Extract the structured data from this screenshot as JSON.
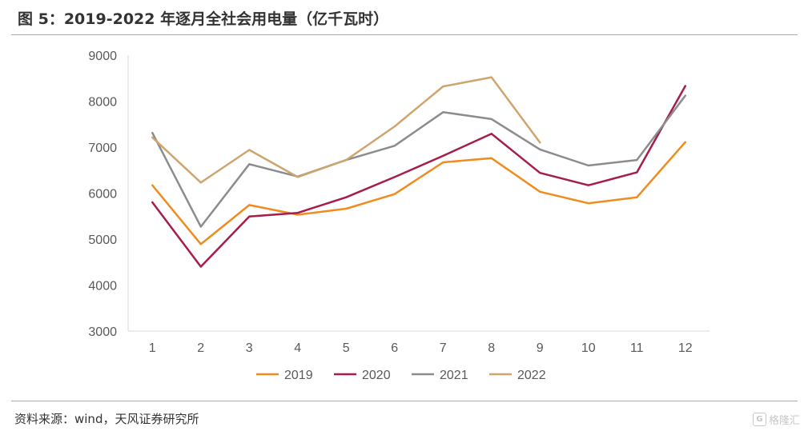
{
  "header": {
    "title": "图 5：2019-2022 年逐月全社会用电量（亿千瓦时）"
  },
  "footer": {
    "source": "资料来源：wind，天风证券研究所",
    "brand": "格隆汇",
    "brand_mark": "G"
  },
  "chart_data": {
    "type": "line",
    "categories": [
      "1",
      "2",
      "3",
      "4",
      "5",
      "6",
      "7",
      "8",
      "9",
      "10",
      "11",
      "12"
    ],
    "ylim": [
      3000,
      9000
    ],
    "yticks": [
      "3000",
      "4000",
      "5000",
      "6000",
      "7000",
      "8000",
      "9000"
    ],
    "grid": false,
    "legend_position": "bottom",
    "series": [
      {
        "name": "2019",
        "color": "#f08c1e",
        "values": [
          6170,
          4890,
          5740,
          5530,
          5660,
          5980,
          6670,
          6760,
          6030,
          5780,
          5910,
          7110
        ]
      },
      {
        "name": "2020",
        "color": "#a51d48",
        "values": [
          5800,
          4400,
          5490,
          5570,
          5910,
          6350,
          6810,
          7290,
          6440,
          6170,
          6450,
          8330
        ]
      },
      {
        "name": "2021",
        "color": "#8c8c8c",
        "values": [
          7310,
          5270,
          6630,
          6360,
          6720,
          7030,
          7760,
          7610,
          6950,
          6600,
          6720,
          8120
        ]
      },
      {
        "name": "2022",
        "color": "#cda56e",
        "values": [
          7210,
          6230,
          6940,
          6350,
          6720,
          7450,
          8320,
          8520,
          7100,
          null,
          null,
          null
        ]
      }
    ]
  }
}
